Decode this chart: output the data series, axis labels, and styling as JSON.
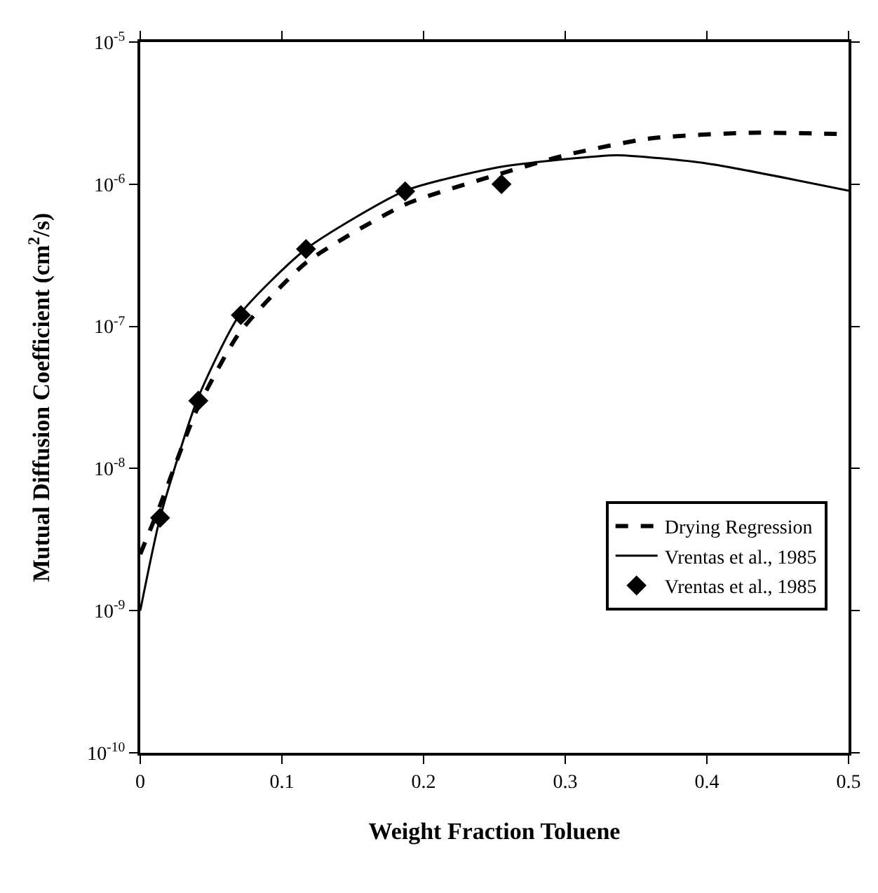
{
  "chart_data": {
    "type": "line",
    "xlabel": "Weight Fraction Toluene",
    "ylabel": "Mutual Diffusion Coefficient (cm$^{2}$/s)",
    "log": "y",
    "xlim": [
      0,
      0.5
    ],
    "xticks": [
      0,
      0.1,
      0.2,
      0.3,
      0.4,
      0.5
    ],
    "ylim": [
      1e-10,
      1e-05
    ],
    "yticks": [
      {
        "value": 1e-10,
        "label": "10$^{-10}$"
      },
      {
        "value": 1e-09,
        "label": "10$^{-9}$"
      },
      {
        "value": 1e-08,
        "label": "10$^{-8}$"
      },
      {
        "value": 1e-07,
        "label": "10$^{-7}$"
      },
      {
        "value": 1e-06,
        "label": "10$^{-6}$"
      },
      {
        "value": 1e-05,
        "label": "10$^{-5}$"
      }
    ],
    "grid": false,
    "legend": "bottom right",
    "series": [
      {
        "name": "Drying Regression",
        "line_style": "dashed",
        "color": "#000000",
        "x": [
          0,
          0.014,
          0.04,
          0.07,
          0.117,
          0.187,
          0.25,
          0.3,
          0.36,
          0.43,
          0.5
        ],
        "values": [
          2.5e-09,
          5.5e-09,
          2.6e-08,
          9e-08,
          2.8e-07,
          7.2e-07,
          1.15e-06,
          1.6e-06,
          2.1e-06,
          2.3e-06,
          2.25e-06
        ]
      },
      {
        "name": "Vrentas et al., 1985",
        "line_style": "solid",
        "color": "#000000",
        "x": [
          0,
          0.014,
          0.04,
          0.07,
          0.117,
          0.187,
          0.25,
          0.3,
          0.337,
          0.4,
          0.5
        ],
        "values": [
          1e-09,
          4.5e-09,
          3e-08,
          1.2e-07,
          3.5e-07,
          9e-07,
          1.3e-06,
          1.5e-06,
          1.6e-06,
          1.4e-06,
          9e-07
        ]
      },
      {
        "name": "Vrentas et al., 1985",
        "type": "scatter",
        "marker": "diamond",
        "color": "#000000",
        "x": [
          0.014,
          0.041,
          0.071,
          0.117,
          0.187,
          0.255
        ],
        "values": [
          4.5e-09,
          3e-08,
          1.2e-07,
          3.5e-07,
          8.9e-07,
          1e-06
        ]
      }
    ]
  }
}
